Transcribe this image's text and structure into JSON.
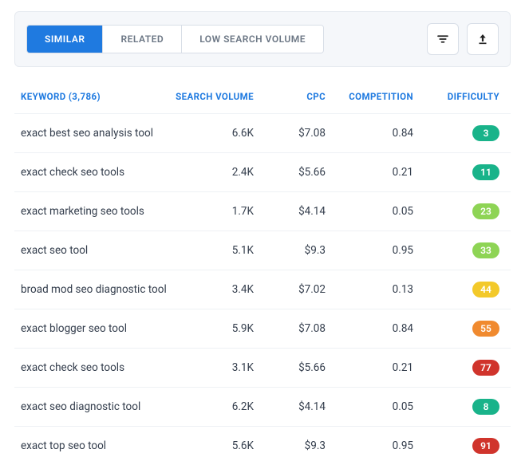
{
  "toolbar": {
    "tabs": [
      {
        "label": "SIMILAR",
        "active": true
      },
      {
        "label": "RELATED",
        "active": false
      },
      {
        "label": "LOW SEARCH VOLUME",
        "active": false
      }
    ],
    "filter_icon": "filter-icon",
    "upload_icon": "upload-icon"
  },
  "colors": {
    "accent": "#1f7ae0",
    "toolbar_bg": "#f5f7fa",
    "border": "#e6eaf0",
    "row_border": "#eef1f5",
    "text": "#333d4c",
    "muted": "#6b7684",
    "pill_text": "#ffffff",
    "difficulty_colors": {
      "teal": "#19b38a",
      "green": "#8ed455",
      "yellow": "#f3c92a",
      "orange": "#f08a2f",
      "red": "#d0342c"
    }
  },
  "table": {
    "columns": {
      "keyword": "KEYWORD (3,786)",
      "volume": "SEARCH VOLUME",
      "cpc": "CPC",
      "competition": "COMPETITION",
      "difficulty": "DIFFICULTY"
    },
    "rows": [
      {
        "keyword": "exact best seo analysis tool",
        "volume": "6.6K",
        "cpc": "$7.08",
        "competition": "0.84",
        "difficulty": "3",
        "diff_color": "#19b38a"
      },
      {
        "keyword": "exact check seo tools",
        "volume": "2.4K",
        "cpc": "$5.66",
        "competition": "0.21",
        "difficulty": "11",
        "diff_color": "#19b38a"
      },
      {
        "keyword": "exact marketing seo tools",
        "volume": "1.7K",
        "cpc": "$4.14",
        "competition": "0.05",
        "difficulty": "23",
        "diff_color": "#8ed455"
      },
      {
        "keyword": "exact seo tool",
        "volume": "5.1K",
        "cpc": "$9.3",
        "competition": "0.95",
        "difficulty": "33",
        "diff_color": "#8ed455"
      },
      {
        "keyword": "broad mod seo diagnostic tool",
        "volume": "3.4K",
        "cpc": "$7.02",
        "competition": "0.13",
        "difficulty": "44",
        "diff_color": "#f3c92a"
      },
      {
        "keyword": "exact blogger seo tool",
        "volume": "5.9K",
        "cpc": "$7.08",
        "competition": "0.84",
        "difficulty": "55",
        "diff_color": "#f08a2f"
      },
      {
        "keyword": "exact check seo tools",
        "volume": "3.1K",
        "cpc": "$5.66",
        "competition": "0.21",
        "difficulty": "77",
        "diff_color": "#d0342c"
      },
      {
        "keyword": "exact seo diagnostic tool",
        "volume": "6.2K",
        "cpc": "$4.14",
        "competition": "0.05",
        "difficulty": "8",
        "diff_color": "#19b38a"
      },
      {
        "keyword": "exact top seo tool",
        "volume": "5.6K",
        "cpc": "$9.3",
        "competition": "0.95",
        "difficulty": "91",
        "diff_color": "#d0342c"
      }
    ]
  }
}
